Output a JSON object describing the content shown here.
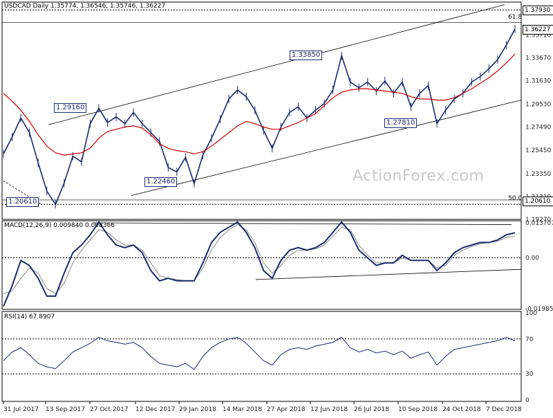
{
  "header": {
    "price_title": "USDCAD Daily",
    "ohlc": "1.35774, 1.36546, 1.35746, 1.36227",
    "macd_title": "MACD(12,26,9) 0.009840 0.008366",
    "rsi_title": "RSI(14) 67.8907"
  },
  "watermark": "ActionForex.com",
  "price_axis": [
    "1.37930",
    "1.35710",
    "1.33670",
    "1.31630",
    "1.29530",
    "1.27490",
    "1.25450",
    "1.23350",
    "1.21310",
    "1.19270"
  ],
  "current_price": "1.36227",
  "level_top": "1.37930",
  "level_bottom": "1.20610",
  "fib_top_label": "61.8",
  "fib_bottom_label": "50.0",
  "macd_axis": [
    "0.013707",
    "0.00",
    "-0.019852"
  ],
  "rsi_axis": [
    "100",
    "70",
    "30",
    "0"
  ],
  "x_axis": [
    "31 Jul 2017",
    "13 Sep 2017",
    "27 Oct 2017",
    "12 Dec 2017",
    "29 Jan 2018",
    "14 Mar 2018",
    "27 Apr 2018",
    "12 Jun 2018",
    "26 Jul 2018",
    "10 Sep 2018",
    "24 Oct 2018",
    "7 Dec 2018"
  ],
  "annotations": {
    "a1": "1.29160",
    "a2": "1.33850",
    "a3": "1.22460",
    "a4": "1.27810",
    "a5": "1.20610"
  },
  "colors": {
    "candle": "#1a2a6e",
    "ma": "#cc0000",
    "macd": "#1a2a6e",
    "signal": "#888888",
    "rsi": "#1a2a6e"
  },
  "chart_data": {
    "type": "line",
    "series": [
      {
        "values": [
          1.251,
          1.266,
          1.283,
          1.27,
          1.243,
          1.218,
          1.2061,
          1.225,
          1.249,
          1.244,
          1.278,
          1.2916,
          1.279,
          1.284,
          1.278,
          1.288,
          1.278,
          1.27,
          1.262,
          1.239,
          1.235,
          1.248,
          1.2246,
          1.25,
          1.265,
          1.282,
          1.3,
          1.308,
          1.302,
          1.29,
          1.272,
          1.256,
          1.275,
          1.288,
          1.293,
          1.283,
          1.29,
          1.296,
          1.308,
          1.3385,
          1.315,
          1.31,
          1.315,
          1.307,
          1.316,
          1.305,
          1.315,
          1.293,
          1.305,
          1.312,
          1.2781,
          1.29,
          1.3,
          1.305,
          1.315,
          1.32,
          1.327,
          1.335,
          1.348,
          1.3623
        ]
      },
      {
        "values": [
          1.305,
          1.298,
          1.29,
          1.28,
          1.268,
          1.258,
          1.252,
          1.25,
          1.251,
          1.252,
          1.256,
          1.265,
          1.271,
          1.273,
          1.275,
          1.276,
          1.274,
          1.268,
          1.26,
          1.256,
          1.254,
          1.253,
          1.251,
          1.253,
          1.258,
          1.264,
          1.27,
          1.276,
          1.28,
          1.278,
          1.275,
          1.273,
          1.273,
          1.276,
          1.279,
          1.283,
          1.287,
          1.294,
          1.301,
          1.306,
          1.308,
          1.309,
          1.309,
          1.308,
          1.307,
          1.306,
          1.305,
          1.302,
          1.3,
          1.3,
          1.299,
          1.299,
          1.301,
          1.305,
          1.309,
          1.314,
          1.319,
          1.325,
          1.332,
          1.34
        ]
      }
    ],
    "macd": {
      "macd": [
        -0.019,
        -0.011,
        -0.001,
        -0.003,
        -0.008,
        -0.015,
        -0.015,
        -0.006,
        0.002,
        0.005,
        0.009,
        0.014,
        0.009,
        0.005,
        0.004,
        0.005,
        0.002,
        -0.005,
        -0.009,
        -0.008,
        -0.009,
        -0.009,
        -0.009,
        -0.002,
        0.006,
        0.01,
        0.012,
        0.014,
        0.01,
        0.004,
        -0.005,
        -0.008,
        -0.001,
        0.003,
        0.004,
        0.003,
        0.004,
        0.006,
        0.01,
        0.014,
        0.01,
        0.003,
        0.0,
        -0.003,
        -0.002,
        -0.002,
        0.001,
        -0.001,
        -0.001,
        -0.001,
        -0.005,
        -0.002,
        0.002,
        0.004,
        0.005,
        0.006,
        0.006,
        0.007,
        0.009,
        0.0098
      ],
      "signal": [
        -0.014,
        -0.013,
        -0.008,
        -0.004,
        -0.006,
        -0.012,
        -0.014,
        -0.01,
        -0.002,
        0.003,
        0.007,
        0.011,
        0.01,
        0.007,
        0.005,
        0.005,
        0.003,
        -0.002,
        -0.007,
        -0.008,
        -0.0085,
        -0.009,
        -0.009,
        -0.004,
        0.003,
        0.008,
        0.011,
        0.013,
        0.011,
        0.006,
        -0.002,
        -0.006,
        -0.003,
        0.001,
        0.003,
        0.003,
        0.0035,
        0.005,
        0.0085,
        0.012,
        0.011,
        0.005,
        0.001,
        -0.002,
        -0.002,
        -0.002,
        0.0,
        -0.001,
        -0.001,
        -0.001,
        -0.004,
        -0.003,
        0.001,
        0.003,
        0.0045,
        0.0055,
        0.006,
        0.0065,
        0.008,
        0.0084
      ]
    },
    "rsi": [
      45,
      55,
      60,
      52,
      42,
      38,
      36,
      45,
      55,
      60,
      65,
      72,
      68,
      66,
      64,
      66,
      60,
      50,
      42,
      40,
      38,
      42,
      35,
      50,
      60,
      66,
      70,
      72,
      65,
      55,
      45,
      40,
      52,
      58,
      60,
      58,
      62,
      64,
      66,
      72,
      60,
      55,
      58,
      54,
      56,
      52,
      56,
      48,
      52,
      55,
      40,
      50,
      58,
      60,
      62,
      64,
      66,
      68,
      72,
      67.89
    ],
    "ylim": [
      1.1927,
      1.3863
    ],
    "macd_ylim": [
      -0.0199,
      0.0137
    ],
    "rsi_ylim": [
      0,
      100
    ]
  }
}
